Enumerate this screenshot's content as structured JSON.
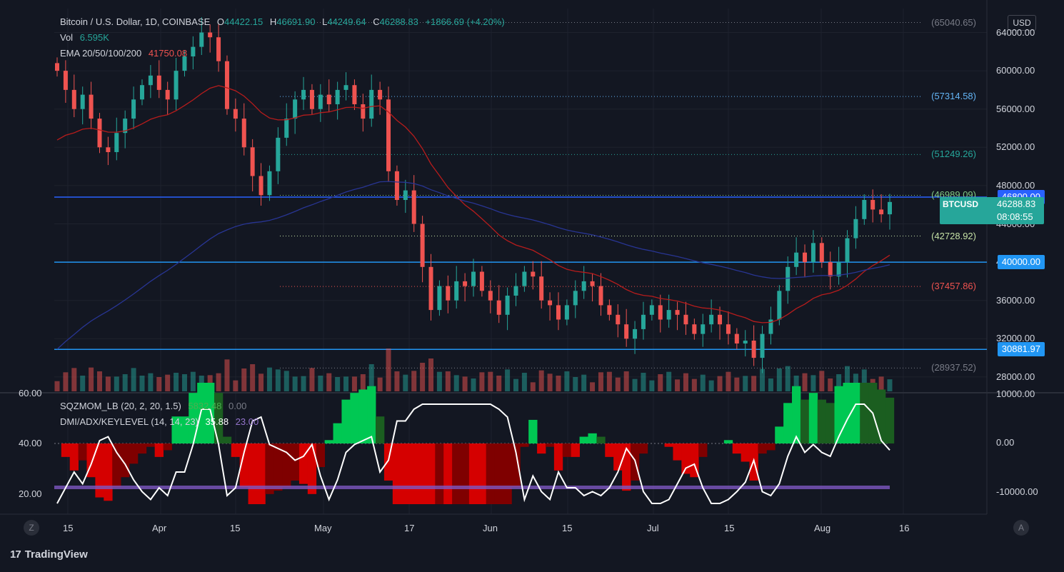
{
  "legend": {
    "title": "Bitcoin / U.S. Dollar, 1D, COINBASE",
    "o_label": "O",
    "o": "44422.15",
    "h_label": "H",
    "h": "46691.90",
    "l_label": "L",
    "l": "44249.64",
    "c_label": "C",
    "c": "46288.83",
    "change": "+1866.69 (+4.20%)",
    "vol_label": "Vol",
    "vol": "6.595K",
    "ema_label": "EMA 20/50/100/200",
    "ema_value": "41750.08",
    "sqz_label": "SQZMOM_LB (20, 2, 20, 1.5)",
    "sqz_v1": "5832.48",
    "sqz_v2": "0.00",
    "dmi_label": "DMI/ADX/KEYLEVEL (14, 14, 23)",
    "dmi_v1": "35.88",
    "dmi_v2": "23.00"
  },
  "price_axis": [
    "64000.00",
    "60000.00",
    "56000.00",
    "52000.00",
    "48000.00",
    "44000.00",
    "40000.00",
    "36000.00",
    "32000.00",
    "28000.00"
  ],
  "osc_axis": [
    "10000.00",
    "0.00",
    "-10000.00"
  ],
  "left_axis": [
    "60.00",
    "40.00",
    "20.00"
  ],
  "time_axis": [
    "15",
    "Apr",
    "15",
    "May",
    "17",
    "Jun",
    "15",
    "Jul",
    "15",
    "Aug",
    "16"
  ],
  "fib_levels": [
    {
      "label": "(65040.65)",
      "value": 65040.65,
      "color": "#787b86"
    },
    {
      "label": "(57314.58)",
      "value": 57314.58,
      "color": "#64b5f6"
    },
    {
      "label": "(51249.26)",
      "value": 51249.26,
      "color": "#26a69a"
    },
    {
      "label": "(46989.09)",
      "value": 46989.09,
      "color": "#81c784"
    },
    {
      "label": "(42728.92)",
      "value": 42728.92,
      "color": "#c5e1a5"
    },
    {
      "label": "(37457.86)",
      "value": 37457.86,
      "color": "#ef5350"
    },
    {
      "label": "(28937.52)",
      "value": 28937.52,
      "color": "#787b86"
    }
  ],
  "h_lines": [
    {
      "label": "46800.00",
      "value": 46800,
      "color": "#2962ff"
    },
    {
      "label": "40000.00",
      "value": 40000,
      "color": "#2196f3"
    },
    {
      "label": "30881.97",
      "value": 30881.97,
      "color": "#2196f3"
    }
  ],
  "last_price": {
    "symbol": "BTCUSD",
    "price": "46288.83",
    "countdown": "08:08:55"
  },
  "currency": "USD",
  "brand": "TradingView",
  "zoom_btn": "Z",
  "auto_btn": "A",
  "colors": {
    "up": "#26a69a",
    "down": "#ef5350",
    "ema_red": "#b71c1c",
    "ema_blue": "#1a237e",
    "sqz_green": "#00c853",
    "sqz_red": "#d50000"
  },
  "chart_data": {
    "type": "candlestick",
    "y_range": [
      26500,
      66500
    ],
    "closes_approx": [
      60000,
      58000,
      56000,
      57500,
      55000,
      52000,
      51500,
      53500,
      55000,
      57000,
      58500,
      59500,
      58000,
      57000,
      60000,
      61500,
      62500,
      64000,
      63500,
      61000,
      56000,
      55000,
      52000,
      49000,
      47000,
      49500,
      53000,
      55000,
      57000,
      58000,
      56000,
      57500,
      56500,
      58000,
      58500,
      56500,
      55000,
      58000,
      57000,
      49500,
      46500,
      47500,
      44000,
      39500,
      35000,
      37500,
      36000,
      38000,
      37500,
      39000,
      37000,
      36000,
      34500,
      36500,
      37500,
      39000,
      38500,
      36000,
      35500,
      34000,
      35500,
      37000,
      38000,
      37500,
      35500,
      34500,
      33500,
      32000,
      33000,
      34500,
      35500,
      34000,
      35000,
      34500,
      33500,
      32500,
      33500,
      34500,
      33500,
      32500,
      31500,
      31800,
      30000,
      32500,
      34000,
      37000,
      39500,
      41000,
      40000,
      42000,
      40000,
      38500,
      40000,
      42500,
      44500,
      46500,
      45500,
      45000,
      46288
    ]
  }
}
